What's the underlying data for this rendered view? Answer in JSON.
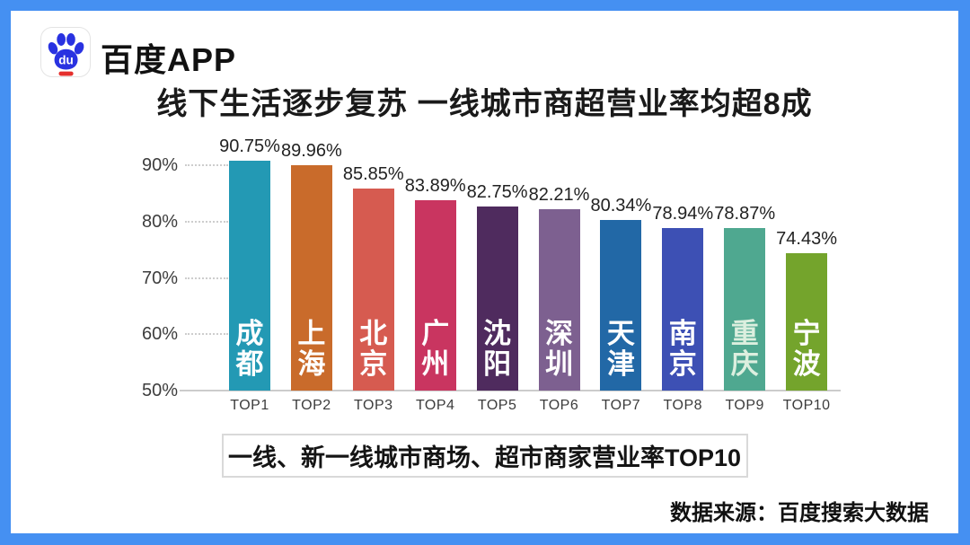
{
  "frame": {
    "border_color": "#4590F2"
  },
  "header": {
    "logo_icon": "baidu-paw-icon",
    "app_name": "百度APP"
  },
  "title": "线下生活逐步复苏 一线城市商超营业率均超8成",
  "chart_data": {
    "type": "bar",
    "title": "一线、新一线城市商场、超市商家营业率TOP10",
    "categories": [
      "成都",
      "上海",
      "北京",
      "广州",
      "沈阳",
      "深圳",
      "天津",
      "南京",
      "重庆",
      "宁波"
    ],
    "rank_labels": [
      "TOP1",
      "TOP2",
      "TOP3",
      "TOP4",
      "TOP5",
      "TOP6",
      "TOP7",
      "TOP8",
      "TOP9",
      "TOP10"
    ],
    "values": [
      90.75,
      89.96,
      85.85,
      83.89,
      82.75,
      82.21,
      80.34,
      78.94,
      78.87,
      74.43
    ],
    "value_labels": [
      "90.75%",
      "89.96%",
      "85.85%",
      "83.89%",
      "82.75%",
      "82.21%",
      "80.34%",
      "78.94%",
      "78.87%",
      "74.43%"
    ],
    "bar_colors": [
      "#2399B4",
      "#C96B2B",
      "#D65B50",
      "#C93560",
      "#4F2B5E",
      "#7D6090",
      "#2268A6",
      "#3D50B4",
      "#4FA890",
      "#74A42C"
    ],
    "category_label_colors": [
      "#FFFFFF",
      "#FFFFFF",
      "#FFFFFF",
      "#FFFFFF",
      "#FFFFFF",
      "#FFFFFF",
      "#FFFFFF",
      "#FFFFFF",
      "#DCEFDF",
      "#FFFFFF"
    ],
    "y_axis": {
      "min": 50,
      "ticks": [
        90,
        80,
        70,
        60,
        50
      ],
      "tick_labels": [
        "90%",
        "80%",
        "70%",
        "60%",
        "50%"
      ]
    },
    "grid": "short-dotted-segments-left",
    "legend": "none",
    "xlabel": "",
    "ylabel": ""
  },
  "source": "数据来源：百度搜索大数据",
  "colors": {
    "axis_line": "#cccccc",
    "value_label_text": "#222222",
    "rank_label_text": "#3c3c3c",
    "title_text": "#1a1a1a"
  }
}
